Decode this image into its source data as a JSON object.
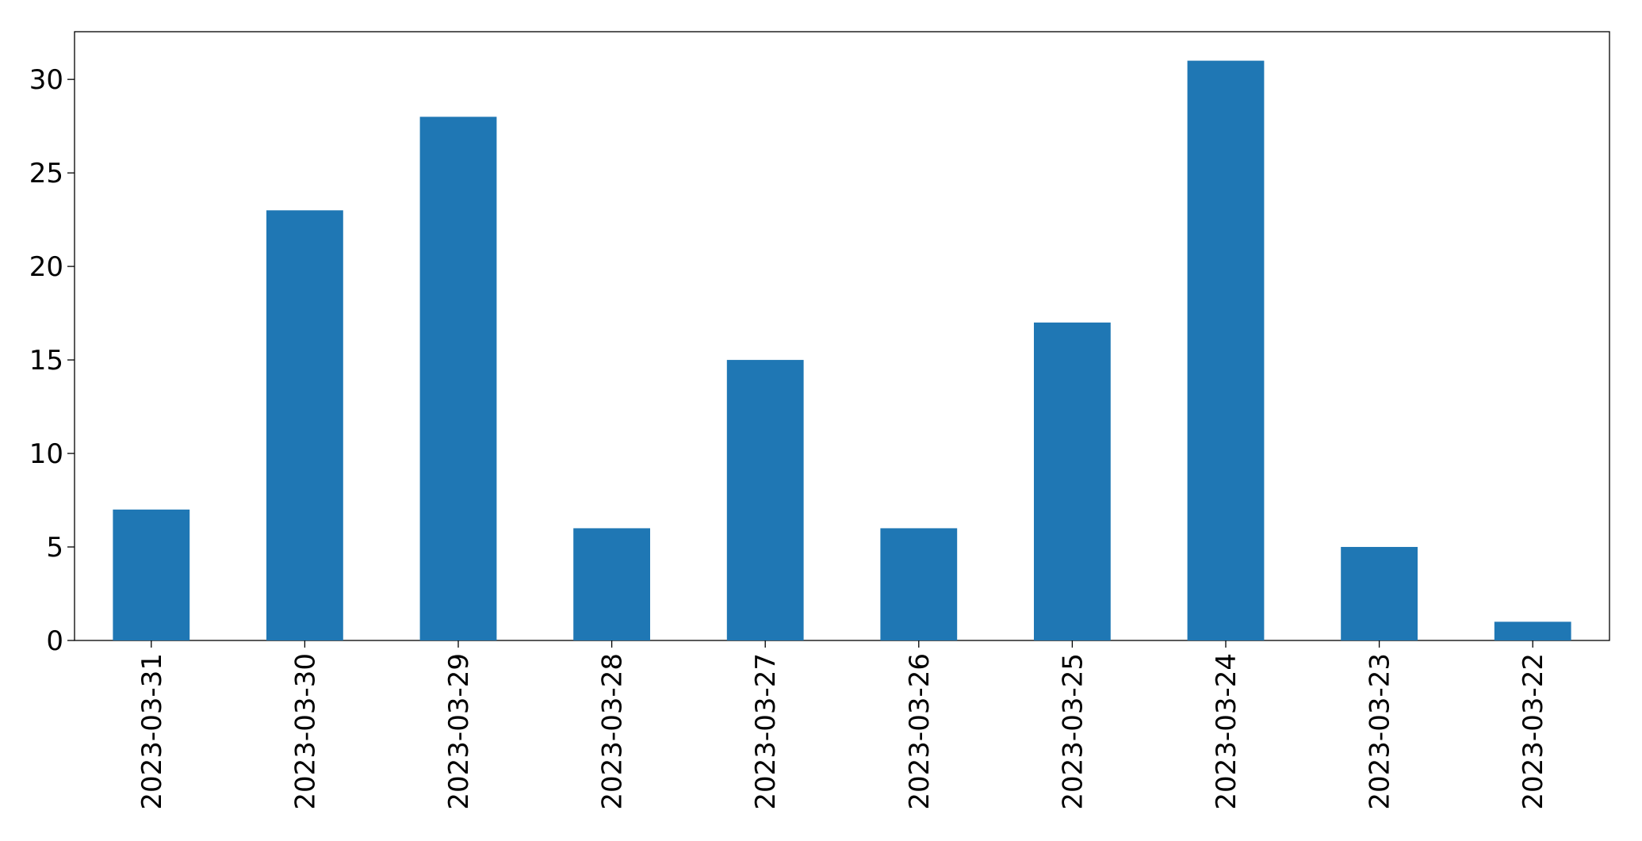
{
  "chart_data": {
    "type": "bar",
    "categories": [
      "2023-03-31",
      "2023-03-30",
      "2023-03-29",
      "2023-03-28",
      "2023-03-27",
      "2023-03-26",
      "2023-03-25",
      "2023-03-24",
      "2023-03-23",
      "2023-03-22"
    ],
    "values": [
      7,
      23,
      28,
      6,
      15,
      6,
      17,
      31,
      5,
      1
    ],
    "color": "#1f77b4",
    "ylim": [
      0,
      32.55
    ],
    "yticks": [
      0,
      5,
      10,
      15,
      20,
      25,
      30
    ],
    "grid": false
  }
}
